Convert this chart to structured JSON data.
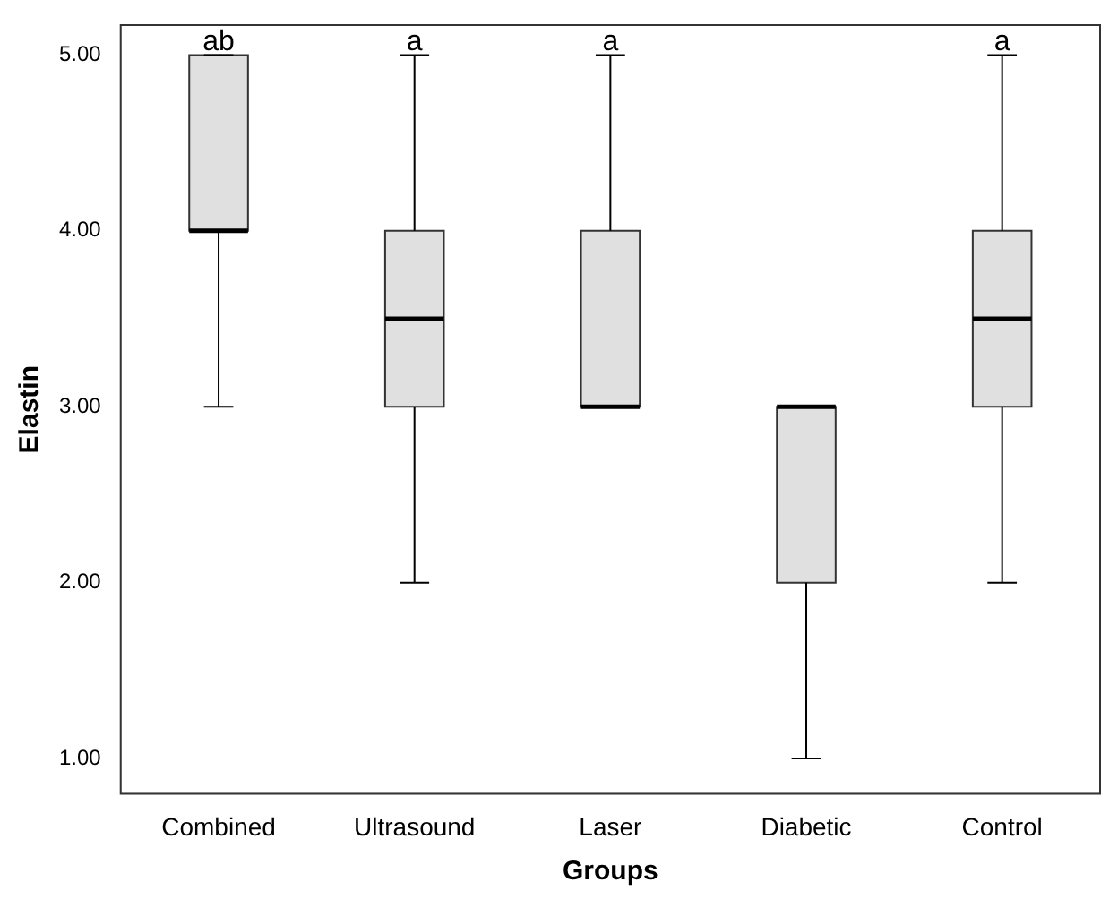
{
  "chart_data": {
    "type": "box",
    "xlabel": "Groups",
    "ylabel": "Elastin",
    "categories": [
      "Combined",
      "Ultrasound",
      "Laser",
      "Diabetic",
      "Control"
    ],
    "color": "#e0e0e0",
    "boxes": [
      {
        "low": 3,
        "q1": 4,
        "median": 4,
        "q3": 5,
        "high": 5
      },
      {
        "low": 2,
        "q1": 3,
        "median": 3.5,
        "q3": 4,
        "high": 5
      },
      {
        "low": 3,
        "q1": 3,
        "median": 3,
        "q3": 4,
        "high": 5
      },
      {
        "low": 1,
        "q1": 2,
        "median": 3,
        "q3": 3,
        "high": 3
      },
      {
        "low": 2,
        "q1": 3,
        "median": 3.5,
        "q3": 4,
        "high": 5
      }
    ],
    "ylim": [
      0.8,
      5.17
    ],
    "yticks": [
      {
        "value": 1,
        "label": "1.00"
      },
      {
        "value": 2,
        "label": "2.00"
      },
      {
        "value": 3,
        "label": "3.00"
      },
      {
        "value": 4,
        "label": "4.00"
      },
      {
        "value": 5,
        "label": "5.00"
      }
    ],
    "annotations": [
      {
        "text": "ab",
        "x": "Combined",
        "y": 5
      },
      {
        "text": "a",
        "x": "Ultrasound",
        "y": 5
      },
      {
        "text": "a",
        "x": "Laser",
        "y": 5
      },
      {
        "text": "a",
        "x": "Control",
        "y": 5
      }
    ]
  }
}
